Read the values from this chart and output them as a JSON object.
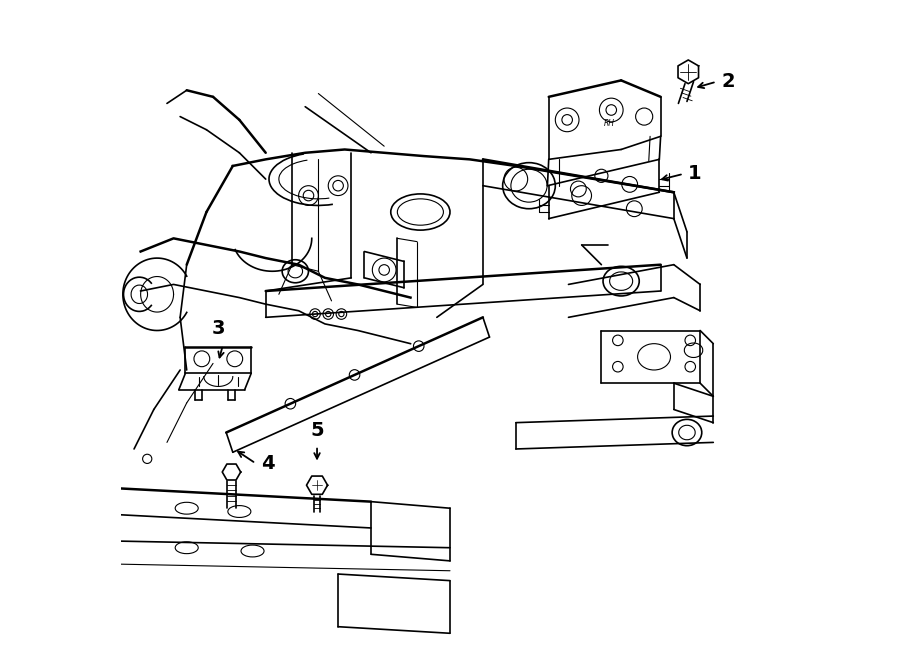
{
  "bg_color": "#ffffff",
  "line_color": "#000000",
  "fig_width": 9.0,
  "fig_height": 6.61,
  "dpi": 100,
  "lw_main": 1.2,
  "lw_thick": 1.8,
  "lw_thin": 0.8
}
